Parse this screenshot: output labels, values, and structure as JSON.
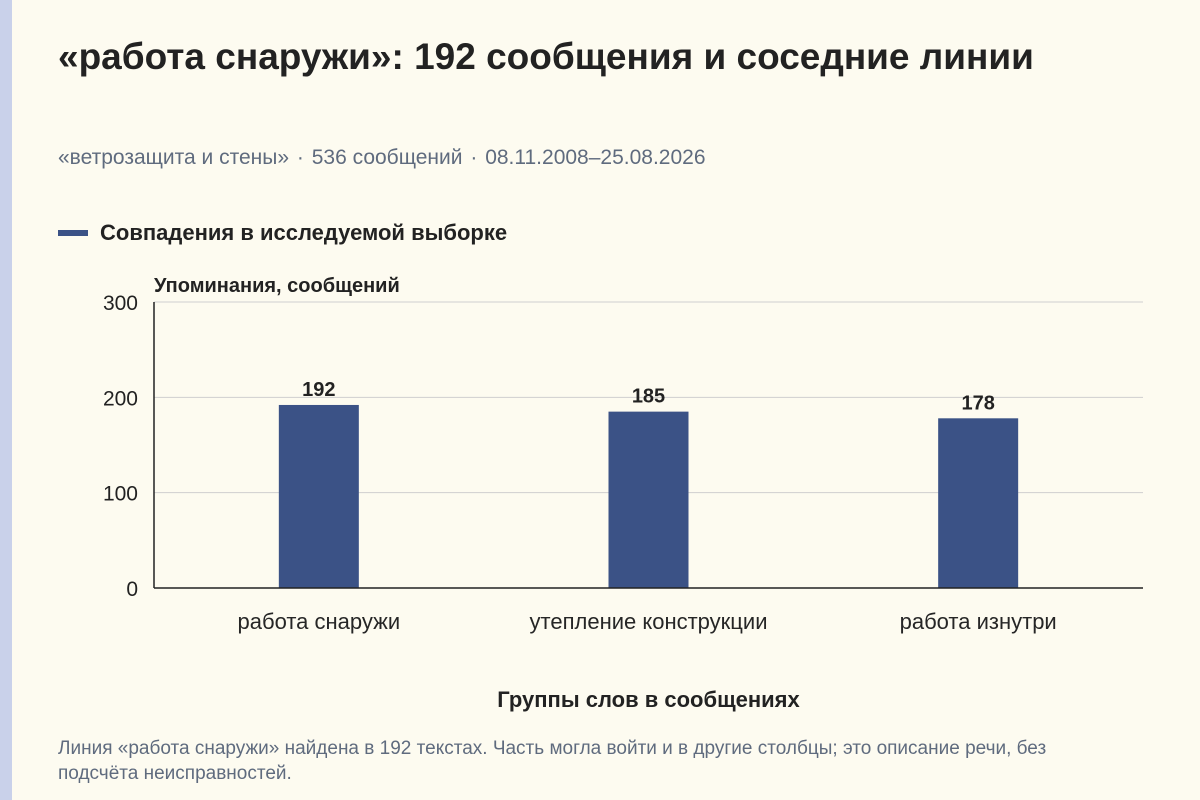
{
  "header": {
    "title": "«работа снаружи»: 192 сообщения и соседние линии",
    "subtitle_parts": [
      "«ветрозащита и стены»",
      "536 сообщений",
      "08.11.2008–25.08.2026"
    ],
    "subtitle_separator": "·"
  },
  "legend": {
    "label": "Совпадения в исследуемой выборке"
  },
  "chart_data": {
    "type": "bar",
    "categories": [
      "работа снаружи",
      "утепление конструкции",
      "работа изнутри"
    ],
    "series": [
      {
        "name": "Совпадения в исследуемой выборке",
        "values": [
          192,
          185,
          178
        ],
        "color": "#3b5286"
      }
    ],
    "ylabel": "Упоминания, сообщений",
    "xlabel": "Группы слов в сообщениях",
    "ylim": [
      0,
      300
    ],
    "yticks": [
      0,
      100,
      200,
      300
    ],
    "grid": true,
    "data_labels": true,
    "legend_position": "top-left"
  },
  "footnote": {
    "text": "Линия «работа снаружи» найдена в 192 текстах. Часть могла войти и в другие столбцы; это описание речи, без подсчёта неисправностей."
  },
  "colors": {
    "bar": "#3b5286",
    "background": "#fdfbf0",
    "accent_strip": "#c9d1ea",
    "muted_text": "#5f6b7e",
    "grid": "#cfcfcf",
    "axis": "#222222"
  }
}
